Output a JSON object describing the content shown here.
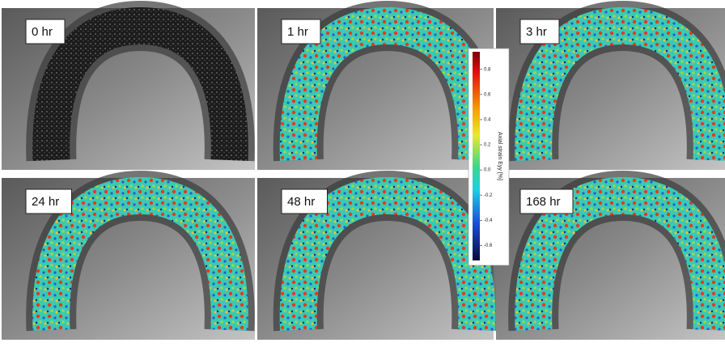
{
  "panels": [
    {
      "label": "0 hr"
    },
    {
      "label": "1 hr"
    },
    {
      "label": "3 hr"
    },
    {
      "label": "24 hr"
    },
    {
      "label": "48 hr"
    },
    {
      "label": "168 hr"
    }
  ],
  "colorbar": {
    "label": "Axial strain Eyy [%]",
    "lim": [
      -0.72,
      0.94
    ],
    "ticks": [
      0.8,
      0.6,
      0.4,
      0.2,
      {
        "value": 0,
        "label": "0.0"
      },
      -0.2,
      -0.4,
      -0.6
    ]
  }
}
